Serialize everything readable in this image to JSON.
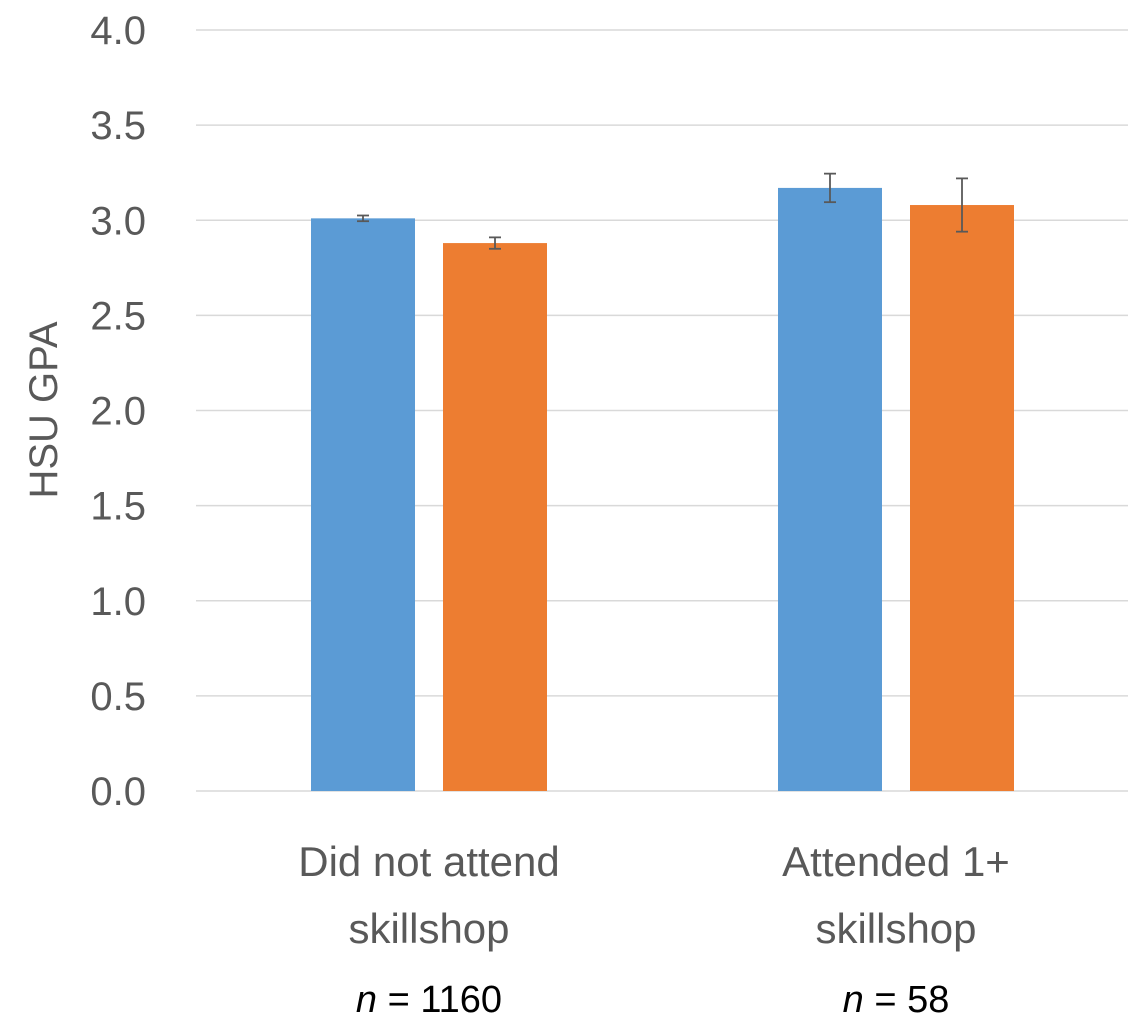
{
  "chart_data": {
    "type": "bar",
    "ylabel": "HSU GPA",
    "xlabel": "",
    "ylim": [
      0,
      4.0
    ],
    "yticks": [
      "0.0",
      "0.5",
      "1.0",
      "1.5",
      "2.0",
      "2.5",
      "3.0",
      "3.5",
      "4.0"
    ],
    "grid": true,
    "categories": [
      [
        "Did not attend",
        "skillshop"
      ],
      [
        "Attended 1+",
        "skillshop"
      ]
    ],
    "sample_sizes": [
      {
        "prefix": "n",
        "text": " = 1160"
      },
      {
        "prefix": "n",
        "text": " = 58"
      }
    ],
    "series": [
      {
        "color": "#5b9bd5",
        "values": [
          3.01,
          3.17
        ],
        "error": [
          0.015,
          0.075
        ]
      },
      {
        "color": "#ed7d31",
        "values": [
          2.88,
          3.08
        ],
        "error": [
          0.03,
          0.14
        ]
      }
    ]
  }
}
